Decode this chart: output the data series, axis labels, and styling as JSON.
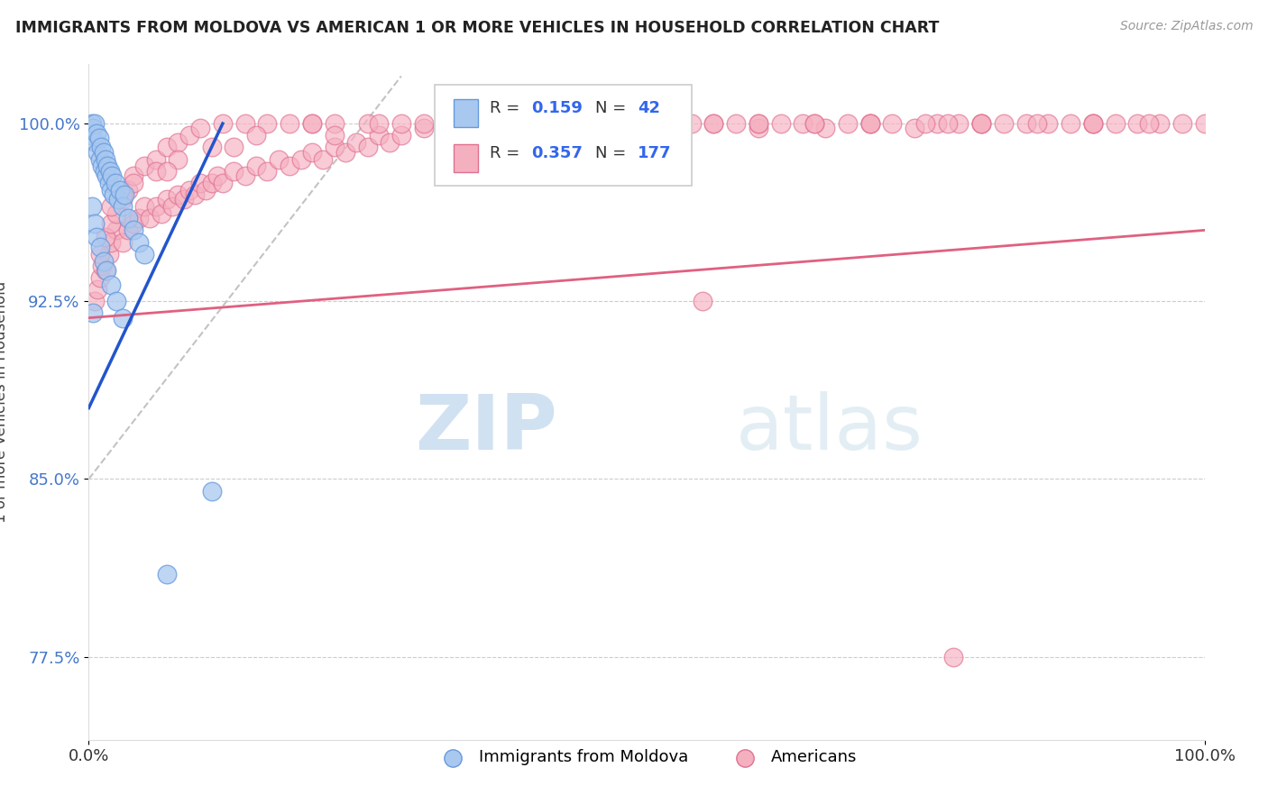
{
  "title": "IMMIGRANTS FROM MOLDOVA VS AMERICAN 1 OR MORE VEHICLES IN HOUSEHOLD CORRELATION CHART",
  "source": "Source: ZipAtlas.com",
  "ylabel": "1 or more Vehicles in Household",
  "xlim": [
    0.0,
    100.0
  ],
  "ylim": [
    74.0,
    102.5
  ],
  "yticks": [
    77.5,
    85.0,
    92.5,
    100.0
  ],
  "ytick_labels": [
    "77.5%",
    "85.0%",
    "92.5%",
    "100.0%"
  ],
  "xticks": [
    0.0,
    100.0
  ],
  "xtick_labels": [
    "0.0%",
    "100.0%"
  ],
  "blue_color": "#A8C8F0",
  "blue_edge_color": "#6699DD",
  "pink_color": "#F5B0C0",
  "pink_edge_color": "#E07090",
  "blue_R": 0.159,
  "blue_N": 42,
  "pink_R": 0.357,
  "pink_N": 177,
  "blue_scatter_x": [
    0.2,
    0.3,
    0.4,
    0.5,
    0.6,
    0.7,
    0.8,
    0.9,
    1.0,
    1.1,
    1.2,
    1.3,
    1.4,
    1.5,
    1.6,
    1.7,
    1.8,
    1.9,
    2.0,
    2.1,
    2.2,
    2.4,
    2.6,
    2.8,
    3.0,
    3.2,
    3.5,
    4.0,
    4.5,
    5.0,
    0.3,
    0.5,
    0.7,
    1.0,
    1.3,
    1.6,
    2.0,
    2.5,
    3.0,
    0.4,
    7.0,
    11.0
  ],
  "blue_scatter_y": [
    99.5,
    100.0,
    99.8,
    100.0,
    99.2,
    99.6,
    98.8,
    99.4,
    98.5,
    99.0,
    98.2,
    98.8,
    98.0,
    98.5,
    97.8,
    98.2,
    97.5,
    98.0,
    97.2,
    97.8,
    97.0,
    97.5,
    96.8,
    97.2,
    96.5,
    97.0,
    96.0,
    95.5,
    95.0,
    94.5,
    96.5,
    95.8,
    95.2,
    94.8,
    94.2,
    93.8,
    93.2,
    92.5,
    91.8,
    92.0,
    81.0,
    84.5
  ],
  "pink_scatter_x": [
    0.5,
    0.8,
    1.0,
    1.2,
    1.5,
    1.8,
    2.0,
    2.5,
    3.0,
    3.5,
    4.0,
    4.5,
    5.0,
    5.5,
    6.0,
    6.5,
    7.0,
    7.5,
    8.0,
    8.5,
    9.0,
    9.5,
    10.0,
    10.5,
    11.0,
    11.5,
    12.0,
    13.0,
    14.0,
    15.0,
    16.0,
    17.0,
    18.0,
    19.0,
    20.0,
    21.0,
    22.0,
    23.0,
    24.0,
    25.0,
    26.0,
    27.0,
    28.0,
    30.0,
    32.0,
    34.0,
    36.0,
    38.0,
    40.0,
    42.0,
    44.0,
    46.0,
    48.0,
    50.0,
    52.0,
    54.0,
    56.0,
    58.0,
    60.0,
    62.0,
    64.0,
    66.0,
    68.0,
    70.0,
    72.0,
    74.0,
    76.0,
    78.0,
    80.0,
    82.0,
    84.0,
    86.0,
    88.0,
    90.0,
    92.0,
    94.0,
    96.0,
    98.0,
    100.0,
    1.0,
    1.5,
    2.0,
    2.5,
    3.0,
    3.5,
    4.0,
    5.0,
    6.0,
    7.0,
    8.0,
    9.0,
    10.0,
    12.0,
    14.0,
    16.0,
    18.0,
    20.0,
    22.0,
    25.0,
    28.0,
    30.0,
    33.0,
    36.0,
    40.0,
    44.0,
    48.0,
    52.0,
    56.0,
    60.0,
    65.0,
    70.0,
    75.0,
    80.0,
    85.0,
    90.0,
    95.0,
    2.0,
    4.0,
    6.0,
    8.0,
    11.0,
    15.0,
    20.0,
    26.0,
    32.0,
    40.0,
    50.0,
    60.0,
    70.0,
    80.0,
    90.0,
    3.0,
    7.0,
    13.0,
    22.0,
    35.0,
    50.0,
    65.0,
    77.0,
    55.0,
    77.5
  ],
  "pink_scatter_y": [
    92.5,
    93.0,
    93.5,
    94.0,
    93.8,
    94.5,
    95.0,
    95.5,
    95.0,
    95.5,
    95.8,
    96.0,
    96.5,
    96.0,
    96.5,
    96.2,
    96.8,
    96.5,
    97.0,
    96.8,
    97.2,
    97.0,
    97.5,
    97.2,
    97.5,
    97.8,
    97.5,
    98.0,
    97.8,
    98.2,
    98.0,
    98.5,
    98.2,
    98.5,
    98.8,
    98.5,
    99.0,
    98.8,
    99.2,
    99.0,
    99.5,
    99.2,
    99.5,
    99.8,
    99.5,
    100.0,
    99.8,
    100.0,
    99.8,
    100.0,
    100.0,
    99.8,
    100.0,
    100.0,
    99.8,
    100.0,
    100.0,
    100.0,
    99.8,
    100.0,
    100.0,
    99.8,
    100.0,
    100.0,
    100.0,
    99.8,
    100.0,
    100.0,
    100.0,
    100.0,
    100.0,
    100.0,
    100.0,
    100.0,
    100.0,
    100.0,
    100.0,
    100.0,
    100.0,
    94.5,
    95.2,
    95.8,
    96.2,
    96.8,
    97.2,
    97.8,
    98.2,
    98.5,
    99.0,
    99.2,
    99.5,
    99.8,
    100.0,
    100.0,
    100.0,
    100.0,
    100.0,
    100.0,
    100.0,
    100.0,
    100.0,
    100.0,
    100.0,
    100.0,
    100.0,
    100.0,
    100.0,
    100.0,
    100.0,
    100.0,
    100.0,
    100.0,
    100.0,
    100.0,
    100.0,
    100.0,
    96.5,
    97.5,
    98.0,
    98.5,
    99.0,
    99.5,
    100.0,
    100.0,
    100.0,
    100.0,
    100.0,
    100.0,
    100.0,
    100.0,
    100.0,
    97.0,
    98.0,
    99.0,
    99.5,
    100.0,
    100.0,
    100.0,
    100.0,
    92.5,
    77.5
  ],
  "pink_trend_x0": 0.0,
  "pink_trend_y0": 91.8,
  "pink_trend_x1": 100.0,
  "pink_trend_y1": 95.5,
  "blue_trend_x0": 0.0,
  "blue_trend_y0": 88.0,
  "blue_trend_x1": 12.0,
  "blue_trend_y1": 100.0,
  "dash_trend_x0": 0.0,
  "dash_trend_y0": 85.0,
  "dash_trend_x1": 28.0,
  "dash_trend_y1": 102.0
}
